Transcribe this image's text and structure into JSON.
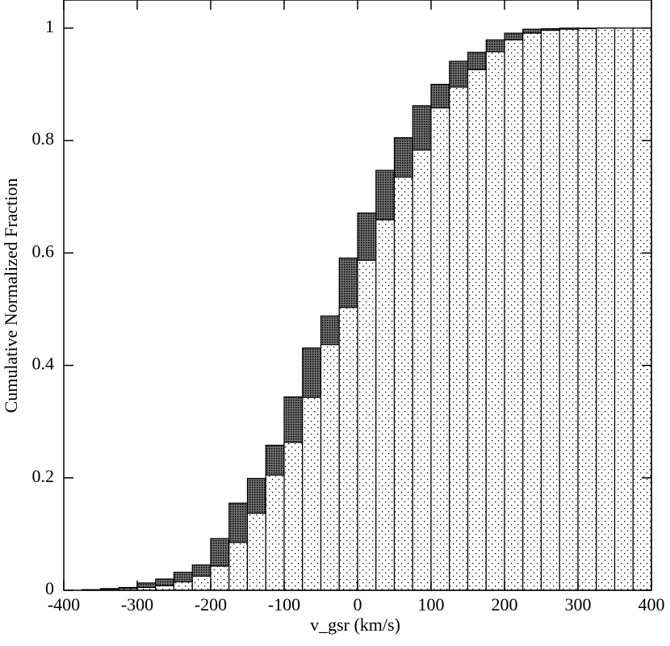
{
  "chart_data": {
    "type": "histogram",
    "x_label": "v_gsr (km/s)",
    "y_label": "Cumulative Normalized Fraction",
    "bins": [
      -400,
      -375,
      -350,
      -325,
      -300,
      -275,
      -250,
      -225,
      -200,
      -175,
      -150,
      -125,
      -100,
      -75,
      -50,
      -25,
      0,
      25,
      50,
      75,
      100,
      125,
      150,
      175,
      200,
      225,
      250,
      275,
      300,
      325,
      350,
      375,
      400
    ],
    "series": [
      {
        "color": "#707070",
        "values": [
          0,
          0.001,
          0.003,
          0.005,
          0.013,
          0.02,
          0.032,
          0.045,
          0.092,
          0.155,
          0.199,
          0.258,
          0.344,
          0.431,
          0.488,
          0.591,
          0.671,
          0.747,
          0.805,
          0.862,
          0.9,
          0.941,
          0.957,
          0.979,
          0.991,
          0.998,
          0.999,
          1,
          1,
          1,
          1,
          1
        ]
      },
      {
        "color": "#ffffff",
        "values": [
          0,
          0.001,
          0.002,
          0.003,
          0.005,
          0.008,
          0.015,
          0.025,
          0.043,
          0.085,
          0.137,
          0.205,
          0.263,
          0.343,
          0.437,
          0.503,
          0.587,
          0.659,
          0.735,
          0.783,
          0.858,
          0.895,
          0.926,
          0.958,
          0.979,
          0.991,
          0.996,
          0.998,
          0.999,
          1,
          1,
          1
        ]
      }
    ],
    "xlim": [
      -400,
      400
    ],
    "ylim": [
      0,
      1.05
    ],
    "xticks": [
      -400,
      -300,
      -200,
      -100,
      0,
      100,
      200,
      300,
      400
    ],
    "yticks": [
      0,
      0.2,
      0.4,
      0.6,
      0.8,
      1
    ]
  }
}
